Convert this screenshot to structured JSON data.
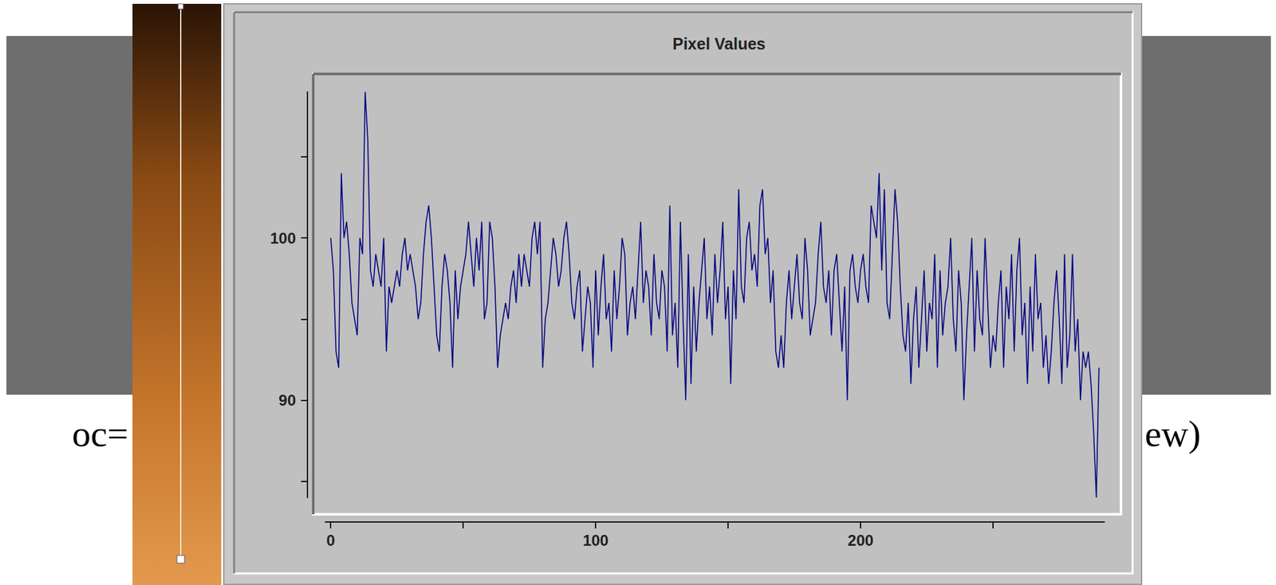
{
  "chart_data": {
    "type": "line",
    "title": "Pixel Values",
    "x": [
      0,
      1,
      2,
      3,
      4,
      5,
      6,
      7,
      8,
      9,
      10,
      11,
      12,
      13,
      14,
      15,
      16,
      17,
      18,
      19,
      20,
      21,
      22,
      23,
      24,
      25,
      26,
      27,
      28,
      29,
      30,
      31,
      32,
      33,
      34,
      35,
      36,
      37,
      38,
      39,
      40,
      41,
      42,
      43,
      44,
      45,
      46,
      47,
      48,
      49,
      50,
      51,
      52,
      53,
      54,
      55,
      56,
      57,
      58,
      59,
      60,
      61,
      62,
      63,
      64,
      65,
      66,
      67,
      68,
      69,
      70,
      71,
      72,
      73,
      74,
      75,
      76,
      77,
      78,
      79,
      80,
      81,
      82,
      83,
      84,
      85,
      86,
      87,
      88,
      89,
      90,
      91,
      92,
      93,
      94,
      95,
      96,
      97,
      98,
      99,
      100,
      101,
      102,
      103,
      104,
      105,
      106,
      107,
      108,
      109,
      110,
      111,
      112,
      113,
      114,
      115,
      116,
      117,
      118,
      119,
      120,
      121,
      122,
      123,
      124,
      125,
      126,
      127,
      128,
      129,
      130,
      131,
      132,
      133,
      134,
      135,
      136,
      137,
      138,
      139,
      140,
      141,
      142,
      143,
      144,
      145,
      146,
      147,
      148,
      149,
      150,
      151,
      152,
      153,
      154,
      155,
      156,
      157,
      158,
      159,
      160,
      161,
      162,
      163,
      164,
      165,
      166,
      167,
      168,
      169,
      170,
      171,
      172,
      173,
      174,
      175,
      176,
      177,
      178,
      179,
      180,
      181,
      182,
      183,
      184,
      185,
      186,
      187,
      188,
      189,
      190,
      191,
      192,
      193,
      194,
      195,
      196,
      197,
      198,
      199,
      200,
      201,
      202,
      203,
      204,
      205,
      206,
      207,
      208,
      209,
      210,
      211,
      212,
      213,
      214,
      215,
      216,
      217,
      218,
      219,
      220,
      221,
      222,
      223,
      224,
      225,
      226,
      227,
      228,
      229,
      230,
      231,
      232,
      233,
      234,
      235,
      236,
      237,
      238,
      239,
      240,
      241,
      242,
      243,
      244,
      245,
      246,
      247,
      248,
      249,
      250,
      251,
      252,
      253,
      254,
      255,
      256,
      257,
      258,
      259,
      260,
      261,
      262,
      263,
      264,
      265,
      266,
      267,
      268,
      269,
      270,
      271,
      272,
      273,
      274,
      275,
      276,
      277,
      278,
      279,
      280,
      281,
      282,
      283,
      284,
      285,
      286,
      287,
      288,
      289,
      290
    ],
    "values": [
      100,
      98,
      93,
      92,
      104,
      100,
      101,
      99,
      96,
      95,
      94,
      100,
      99,
      109,
      106,
      98,
      97,
      99,
      98,
      97,
      100,
      93,
      97,
      96,
      97,
      98,
      97,
      99,
      100,
      98,
      99,
      98,
      97,
      95,
      96,
      99,
      101,
      102,
      100,
      97,
      94,
      93,
      97,
      99,
      98,
      96,
      92,
      98,
      95,
      97,
      98,
      99,
      101,
      99,
      97,
      100,
      98,
      101,
      95,
      96,
      101,
      100,
      97,
      92,
      94,
      95,
      96,
      95,
      97,
      98,
      96,
      99,
      97,
      99,
      98,
      97,
      100,
      101,
      99,
      101,
      92,
      95,
      96,
      98,
      100,
      99,
      97,
      98,
      100,
      101,
      99,
      96,
      95,
      97,
      98,
      93,
      95,
      97,
      96,
      92,
      98,
      94,
      97,
      99,
      95,
      96,
      93,
      98,
      95,
      97,
      100,
      99,
      94,
      96,
      97,
      95,
      98,
      101,
      96,
      98,
      97,
      94,
      99,
      96,
      95,
      98,
      97,
      93,
      102,
      94,
      96,
      92,
      101,
      95,
      90,
      99,
      91,
      97,
      93,
      96,
      98,
      100,
      95,
      97,
      94,
      99,
      96,
      98,
      101,
      95,
      97,
      91,
      98,
      95,
      103,
      97,
      96,
      100,
      101,
      98,
      99,
      97,
      102,
      103,
      99,
      100,
      96,
      98,
      93,
      92,
      94,
      92,
      96,
      98,
      95,
      97,
      99,
      96,
      95,
      100,
      98,
      94,
      95,
      96,
      99,
      101,
      97,
      96,
      98,
      94,
      98,
      99,
      96,
      93,
      97,
      90,
      98,
      99,
      97,
      96,
      98,
      99,
      97,
      96,
      102,
      101,
      100,
      104,
      98,
      103,
      96,
      95,
      99,
      103,
      101,
      97,
      94,
      93,
      96,
      91,
      95,
      97,
      92,
      95,
      98,
      93,
      96,
      95,
      99,
      92,
      98,
      94,
      96,
      97,
      100,
      95,
      93,
      98,
      96,
      90,
      94,
      97,
      100,
      93,
      98,
      95,
      94,
      100,
      96,
      92,
      94,
      93,
      96,
      98,
      92,
      97,
      95,
      99,
      93,
      98,
      100,
      94,
      96,
      91,
      97,
      93,
      99,
      95,
      96,
      92,
      94,
      91,
      93,
      96,
      98,
      95,
      91,
      99,
      92,
      94,
      99,
      93,
      95,
      90,
      93,
      92,
      93,
      91,
      88,
      84,
      92
    ],
    "color": "#000080",
    "xlim": [
      -2,
      292
    ],
    "xticks": [
      0,
      100,
      200
    ],
    "ylim": [
      84,
      109
    ],
    "yticks": [
      90,
      100
    ],
    "grid": false,
    "annotations": [
      "oc=",
      "ew)"
    ]
  }
}
